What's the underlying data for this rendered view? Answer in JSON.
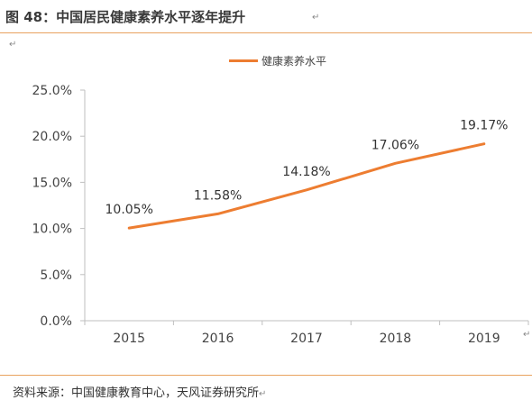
{
  "title": "图 48：中国居民健康素养水平逐年提升",
  "source": "资料来源：中国健康教育中心，天风证券研究所",
  "colors": {
    "series": "#ed7d31",
    "rule": "#e8a25f",
    "axis": "#bfbfbf"
  },
  "chart_data": {
    "type": "line",
    "x": [
      "2015",
      "2016",
      "2017",
      "2018",
      "2019"
    ],
    "series": [
      {
        "name": "健康素养水平",
        "values": [
          10.05,
          11.58,
          14.18,
          17.06,
          19.17
        ],
        "labels": [
          "10.05%",
          "11.58%",
          "14.18%",
          "17.06%",
          "19.17%"
        ]
      }
    ],
    "ylim": [
      0,
      25
    ],
    "yticks": [
      0,
      5,
      10,
      15,
      20,
      25
    ],
    "ytick_labels": [
      "0.0%",
      "5.0%",
      "10.0%",
      "15.0%",
      "20.0%",
      "25.0%"
    ],
    "grid": false,
    "legend": "top-center"
  }
}
